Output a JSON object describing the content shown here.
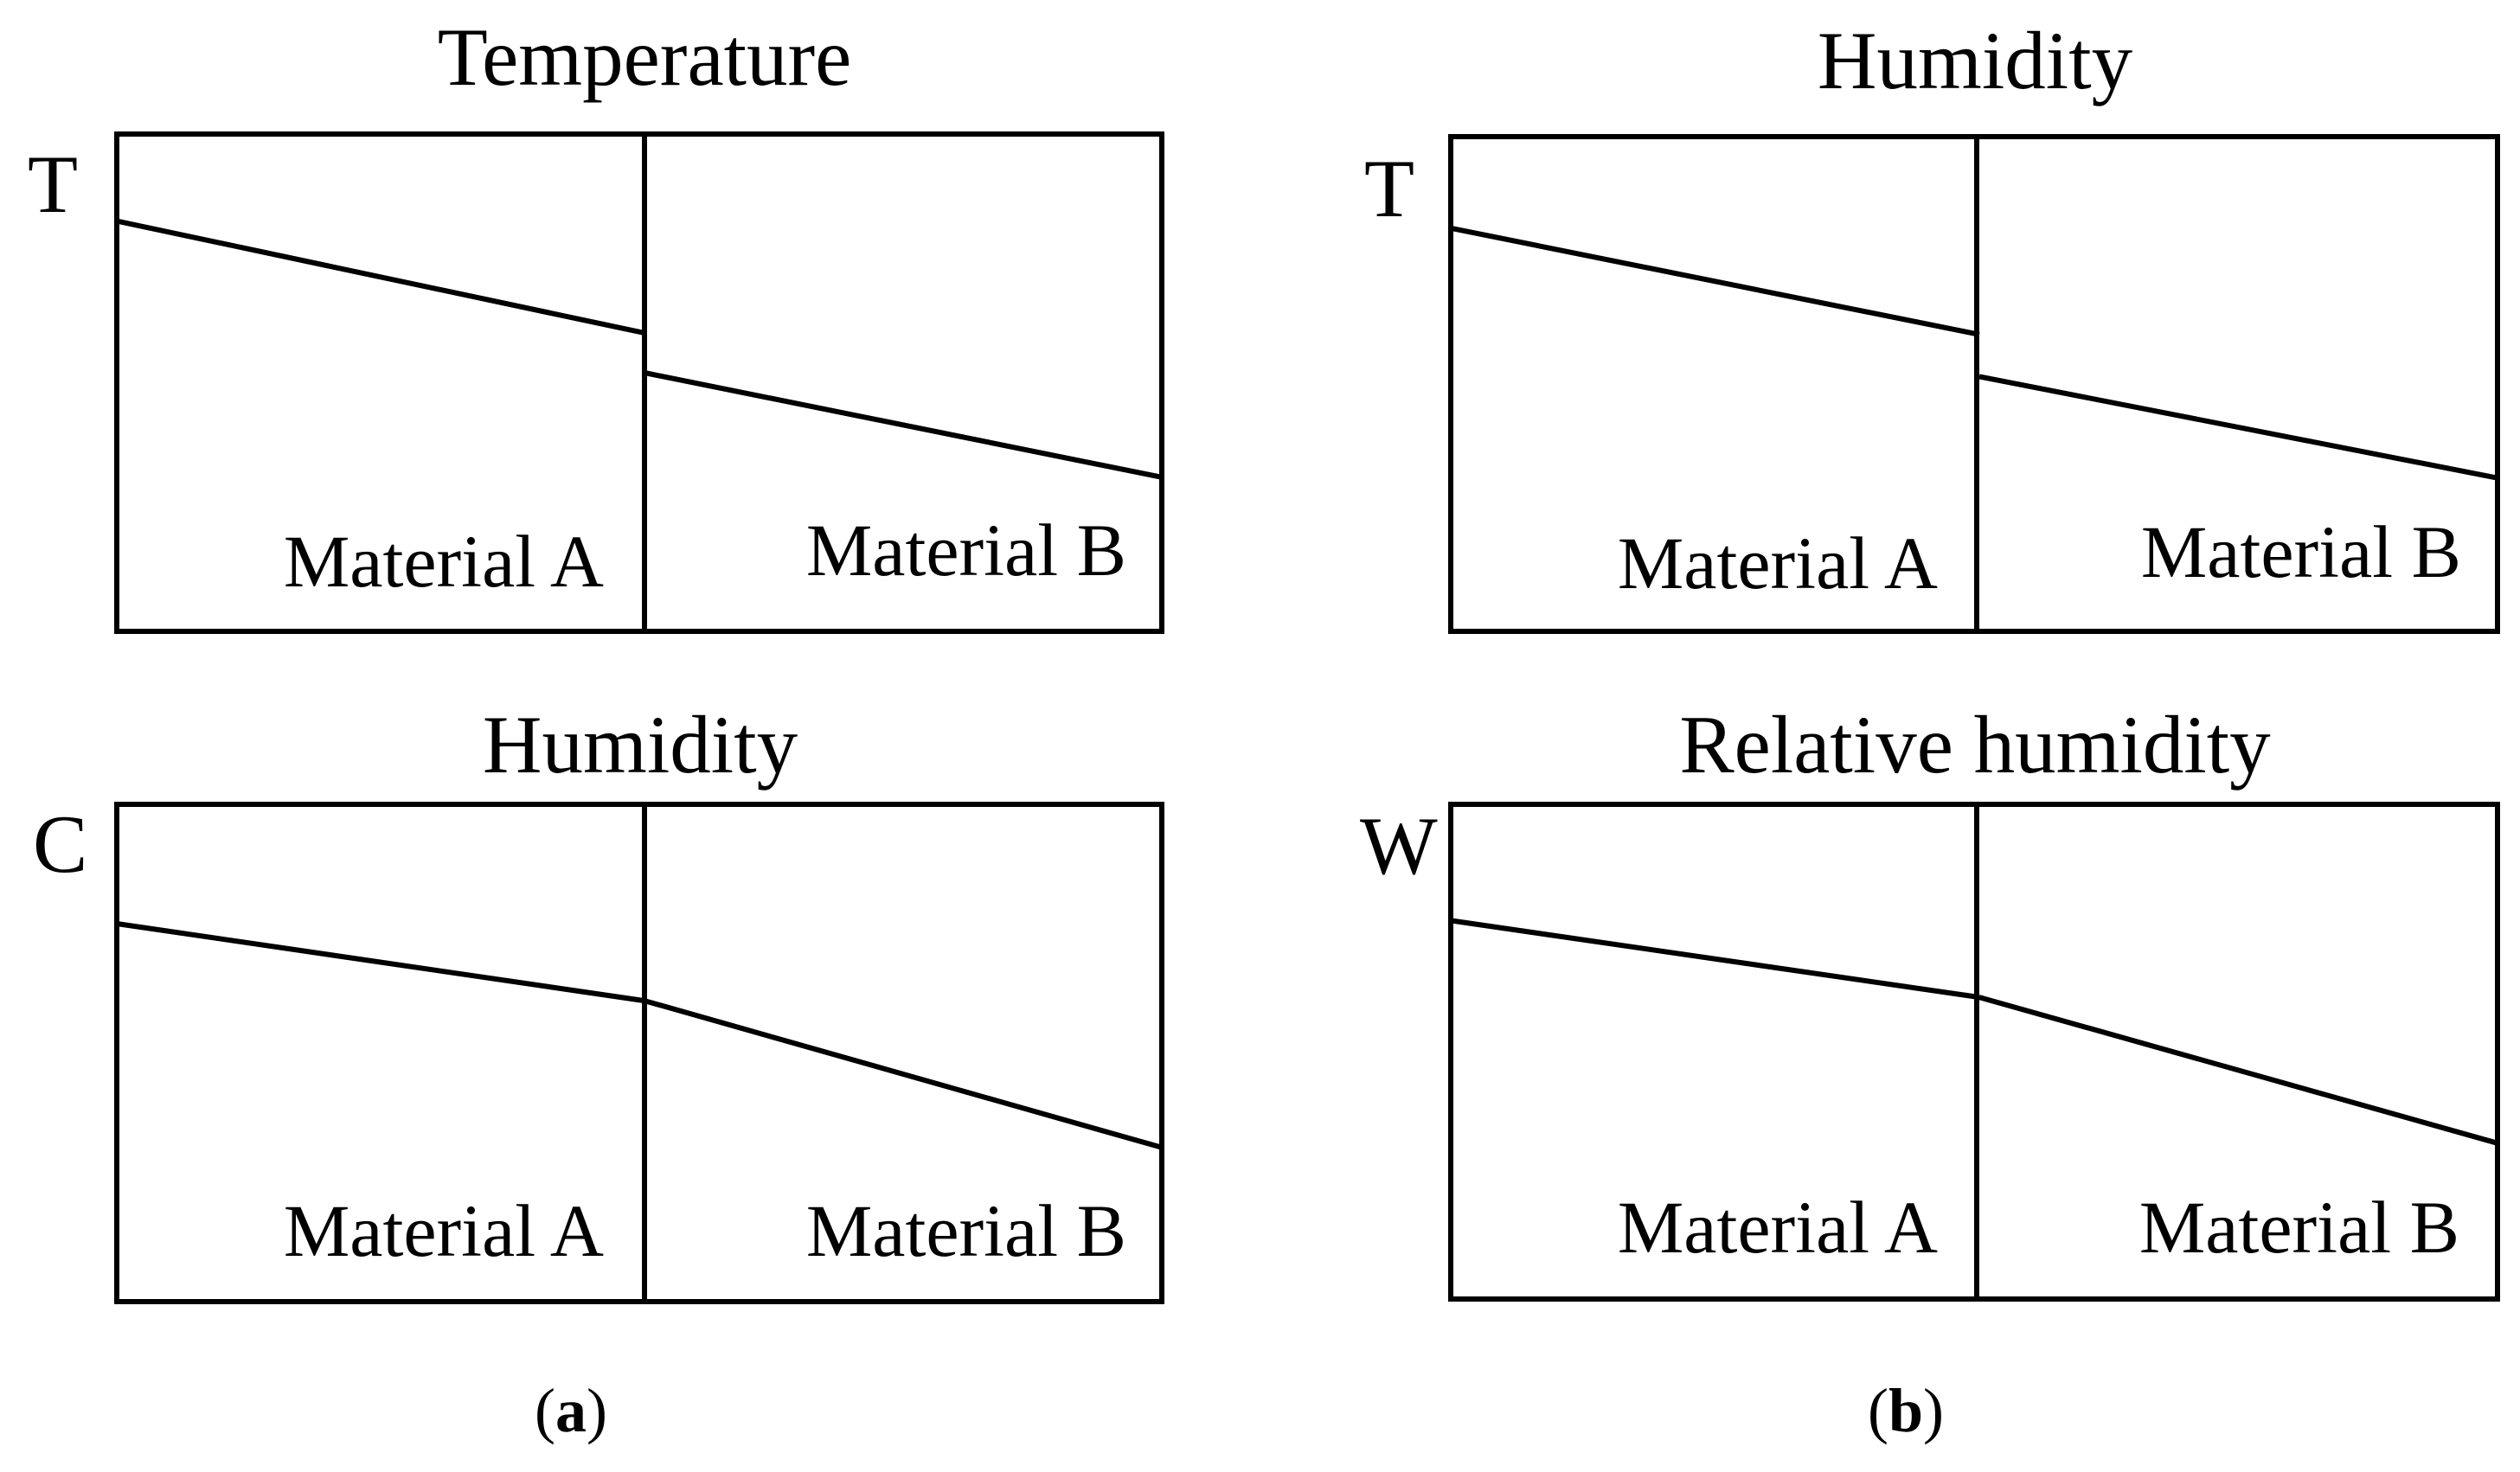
{
  "figure": {
    "panels": [
      {
        "id": "temperature-a",
        "title": "Temperature",
        "axis_label": "T",
        "materials": [
          "Material A",
          "Material B"
        ],
        "profile": {
          "material_a": {
            "start": 0.825,
            "end": 0.6
          },
          "material_b": {
            "start": 0.52,
            "end": 0.31
          }
        }
      },
      {
        "id": "humidity-b",
        "title": "Humidity",
        "axis_label": "T",
        "materials": [
          "Material A",
          "Material B"
        ],
        "profile": {
          "material_a": {
            "start": 0.815,
            "end": 0.6
          },
          "material_b": {
            "start": 0.515,
            "end": 0.31
          }
        }
      },
      {
        "id": "humidity-a",
        "title": "Humidity",
        "axis_label": "C",
        "materials": [
          "Material A",
          "Material B"
        ],
        "profile": {
          "material_a": {
            "start": 0.76,
            "end": 0.605
          },
          "material_b": {
            "start": 0.605,
            "end": 0.31
          }
        }
      },
      {
        "id": "relative-humidity-b",
        "title": "Relative humidity",
        "axis_label": "W",
        "materials": [
          "Material A",
          "Material B"
        ],
        "profile": {
          "material_a": {
            "start": 0.765,
            "end": 0.61
          },
          "material_b": {
            "start": 0.61,
            "end": 0.315
          }
        }
      }
    ],
    "captions": [
      {
        "open": "(",
        "letter": "a",
        "close": ")"
      },
      {
        "open": "(",
        "letter": "b",
        "close": ")"
      }
    ]
  }
}
